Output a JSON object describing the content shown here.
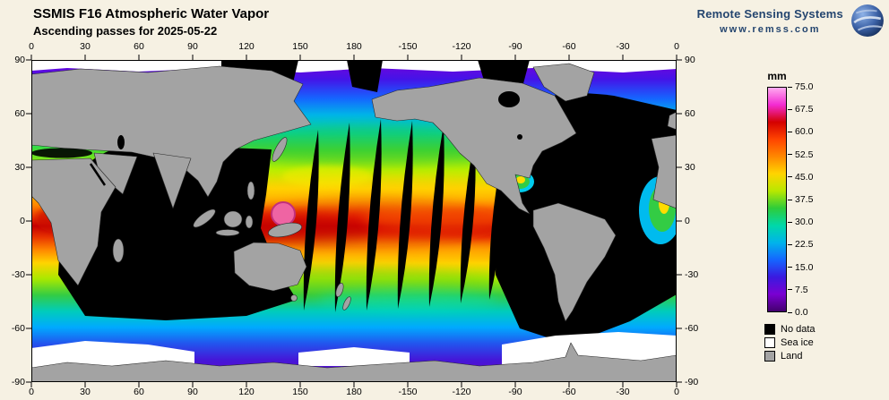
{
  "header": {
    "title": "SSMIS F16 Atmospheric Water Vapor",
    "subtitle": "Ascending passes for 2025-05-22"
  },
  "branding": {
    "name": "Remote Sensing Systems",
    "url": "www.remss.com",
    "logo": "globe-icon",
    "text_color": "#24456f"
  },
  "axes": {
    "longitude_labels": [
      "0",
      "30",
      "60",
      "90",
      "120",
      "150",
      "180",
      "-150",
      "-120",
      "-90",
      "-60",
      "-30",
      "0"
    ],
    "latitude_labels": [
      "90",
      "60",
      "30",
      "0",
      "-30",
      "-60",
      "-90"
    ]
  },
  "colorbar": {
    "unit": "mm",
    "tick_labels": [
      "75.0",
      "67.5",
      "60.0",
      "52.5",
      "45.0",
      "37.5",
      "30.0",
      "22.5",
      "15.0",
      "7.5",
      "0.0"
    ],
    "gradient_colors": [
      "#ffaaf0",
      "#f32ad2",
      "#d40000",
      "#ff4400",
      "#ff8800",
      "#ffd400",
      "#b8e800",
      "#2ecc3a",
      "#00d8a8",
      "#00b4ea",
      "#1566ff",
      "#3a1ae0",
      "#7a00d2",
      "#43006e"
    ]
  },
  "legend": {
    "items": [
      {
        "label": "No data",
        "color": "#000000"
      },
      {
        "label": "Sea ice",
        "color": "#ffffff"
      },
      {
        "label": "Land",
        "color": "#a3a3a3"
      }
    ]
  },
  "colors": {
    "page_bg": "#f6f1e3",
    "no_data": "#000000",
    "sea_ice": "#ffffff",
    "land": "#a3a3a3"
  },
  "chart_data": {
    "type": "heatmap",
    "title": "SSMIS F16 Atmospheric Water Vapor",
    "subtitle": "Ascending passes for 2025-05-22",
    "unit": "mm",
    "value_range": [
      0,
      75
    ],
    "colorbar_ticks": [
      75.0,
      67.5,
      60.0,
      52.5,
      45.0,
      37.5,
      30.0,
      22.5,
      15.0,
      7.5,
      0.0
    ],
    "longitude_ticks": [
      0,
      30,
      60,
      90,
      120,
      150,
      180,
      -150,
      -120,
      -90,
      -60,
      -30,
      0
    ],
    "latitude_ticks": [
      90,
      60,
      30,
      0,
      -30,
      -60,
      -90
    ],
    "categories_legend": [
      "No data",
      "Sea ice",
      "Land"
    ],
    "description": "Global cylindrical map (0-360E) of water vapor from ascending satellite passes: high values 45-65 mm (red/orange) along the tropical Pacific, 15-35 mm (green/cyan) at mid-latitudes, under 10 mm (purple) near the poles; black lens-shaped gaps between orbit swaths over the Pacific and large black unsampled regions over the Indian Ocean and Atlantic; gray land, white sea ice at polar margins."
  }
}
